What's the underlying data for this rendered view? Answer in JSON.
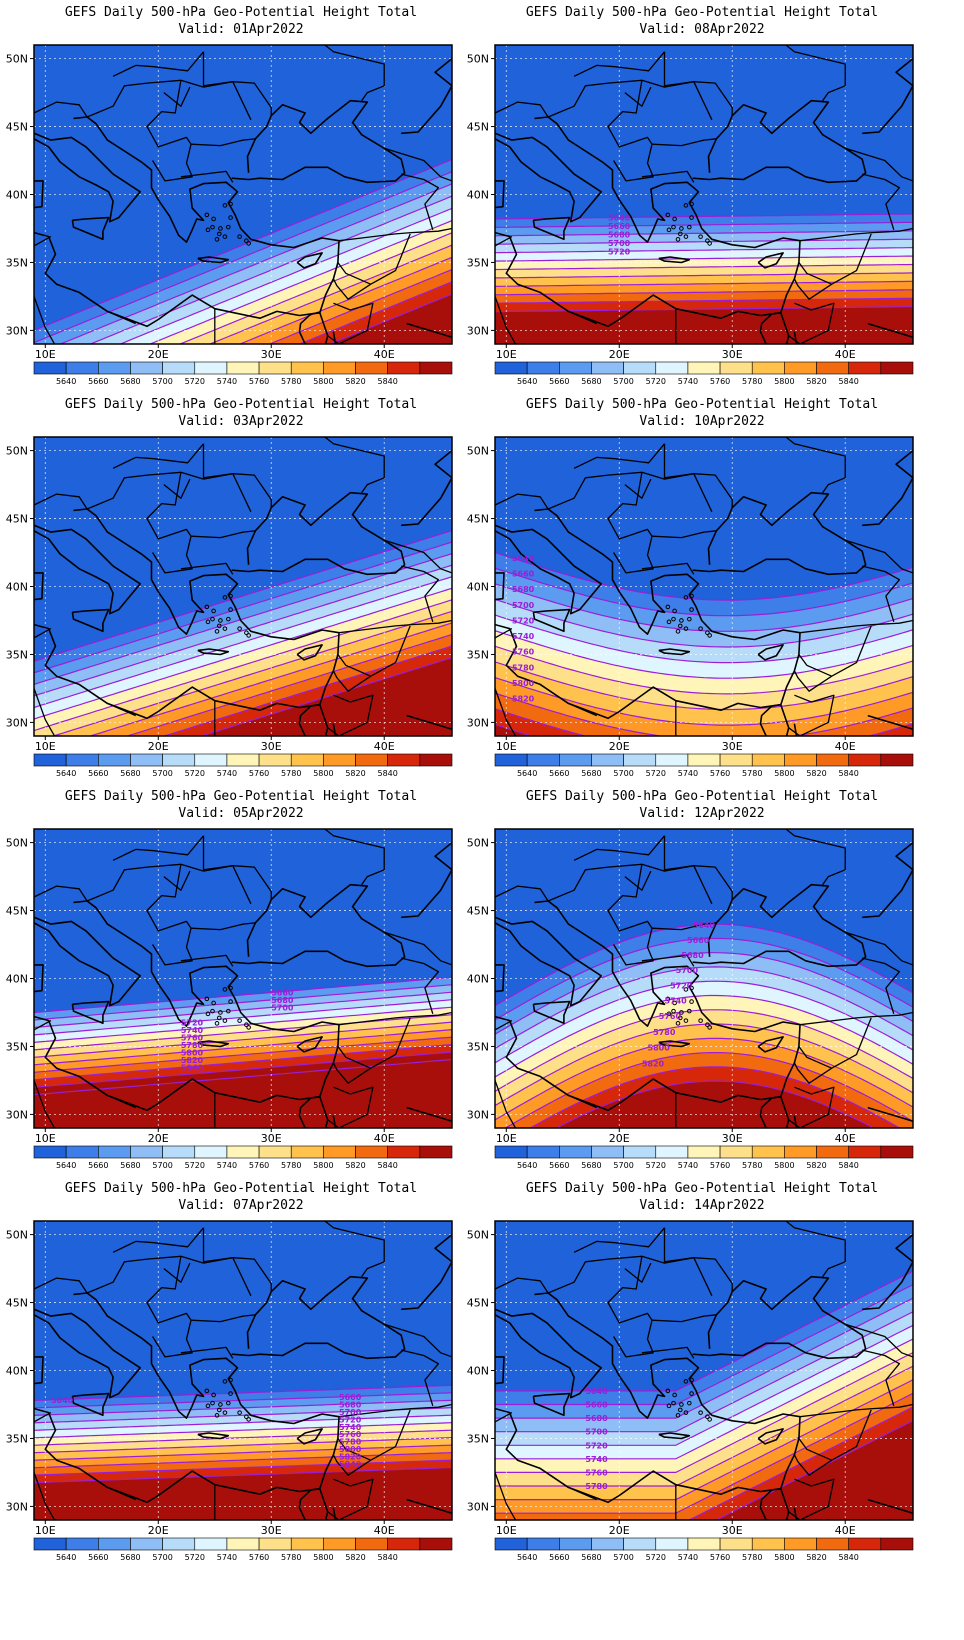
{
  "panels": [
    {
      "title": "GEFS Daily 500-hPa Geo-Potential Height Total",
      "valid": "Valid: 01Apr2022",
      "pattern": "ridge-se-strong",
      "contour_labels": []
    },
    {
      "title": "GEFS Daily 500-hPa Geo-Potential Height Total",
      "valid": "Valid: 08Apr2022",
      "pattern": "zonal-south",
      "contour_labels": [
        "5640",
        "5660",
        "5680",
        "5700",
        "5720"
      ]
    },
    {
      "title": "GEFS Daily 500-hPa Geo-Potential Height Total",
      "valid": "Valid: 03Apr2022",
      "pattern": "ridge-se",
      "contour_labels": []
    },
    {
      "title": "GEFS Daily 500-hPa Geo-Potential Height Total",
      "valid": "Valid: 10Apr2022",
      "pattern": "trough-wave",
      "contour_labels": [
        "5640",
        "5660",
        "5680",
        "5700",
        "5720",
        "5740",
        "5760",
        "5780",
        "5800",
        "5820"
      ]
    },
    {
      "title": "GEFS Daily 500-hPa Geo-Potential Height Total",
      "valid": "Valid: 05Apr2022",
      "pattern": "zonal-hot",
      "contour_labels": [
        "5660",
        "5680",
        "5700",
        "5720",
        "5740",
        "5760",
        "5780",
        "5800",
        "5820",
        "5840"
      ]
    },
    {
      "title": "GEFS Daily 500-hPa Geo-Potential Height Total",
      "valid": "Valid: 12Apr2022",
      "pattern": "dome",
      "contour_labels": [
        "5640",
        "5660",
        "5680",
        "5700",
        "5720",
        "5740",
        "5760",
        "5780",
        "5800",
        "5820"
      ]
    },
    {
      "title": "GEFS Daily 500-hPa Geo-Potential Height Total",
      "valid": "Valid: 07Apr2022",
      "pattern": "zonal-hot2",
      "contour_labels": [
        "5640",
        "5660",
        "5680",
        "5700",
        "5720",
        "5740",
        "5760",
        "5780",
        "5800",
        "5820",
        "5840"
      ]
    },
    {
      "title": "GEFS Daily 500-hPa Geo-Potential Height Total",
      "valid": "Valid: 14Apr2022",
      "pattern": "ridge-east",
      "contour_labels": [
        "5640",
        "5660",
        "5680",
        "5700",
        "5720",
        "5740",
        "5760",
        "5780"
      ]
    }
  ],
  "lat_labels": [
    "50N",
    "45N",
    "40N",
    "35N",
    "30N"
  ],
  "lon_labels": [
    "10E",
    "20E",
    "30E",
    "40E"
  ],
  "colorbar": {
    "labels": [
      "5640",
      "5660",
      "5680",
      "5700",
      "5720",
      "5740",
      "5760",
      "5780",
      "5800",
      "5820",
      "5840"
    ],
    "colors": [
      "#1f62d9",
      "#3d7ee8",
      "#5c9cf0",
      "#8fbdf5",
      "#b7dcfa",
      "#dff5ff",
      "#fff5b8",
      "#ffe08a",
      "#ffc24d",
      "#ff9a26",
      "#f26a10",
      "#d6270b",
      "#a80f0a"
    ]
  },
  "contour_color": "#9b1fd6",
  "coast_color": "#000000"
}
